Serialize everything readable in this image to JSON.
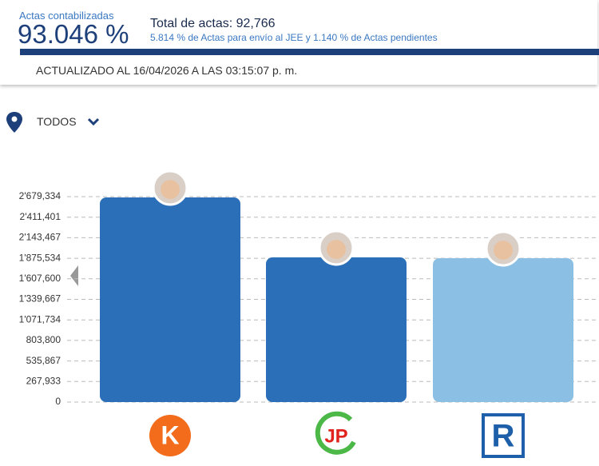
{
  "header": {
    "counted_label": "Actas contabilizadas",
    "counted_percent": "93.046 %",
    "total": "Total de actas: 92,766",
    "detail": "5.814 % de Actas para envío al JEE y 1.140 % de Actas pendientes",
    "updated": "ACTUALIZADO AL 16/04/2026 A LAS 03:15:07 p. m."
  },
  "filter": {
    "label": "TODOS"
  },
  "chart_data": {
    "type": "bar",
    "categories": [
      null,
      null,
      null
    ],
    "values": [
      2669000,
      1887000,
      1876600
    ],
    "colors": [
      "#2b6fb8",
      "#2b6fb8",
      "#8bbfe3"
    ],
    "party_logos": [
      "K",
      "JP",
      "R"
    ],
    "ylim": [
      0,
      2679334
    ],
    "yticks": [
      0,
      {
        "value": 267933,
        "label": "267,933"
      },
      {
        "value": 535867,
        "label": "535,867"
      },
      {
        "value": 803800,
        "label": "803,800"
      },
      {
        "value": 1071734,
        "label": "1'071,734"
      },
      {
        "value": 1339667,
        "label": "1'339,667"
      },
      {
        "value": 1607600,
        "label": "1'607,600"
      },
      {
        "value": 1875534,
        "label": "1'875,534"
      },
      {
        "value": 2143467,
        "label": "2'143,467"
      },
      {
        "value": 2411401,
        "label": "2'411,401"
      },
      {
        "value": 2679334,
        "label": "2'679,334"
      }
    ],
    "grid": true
  }
}
